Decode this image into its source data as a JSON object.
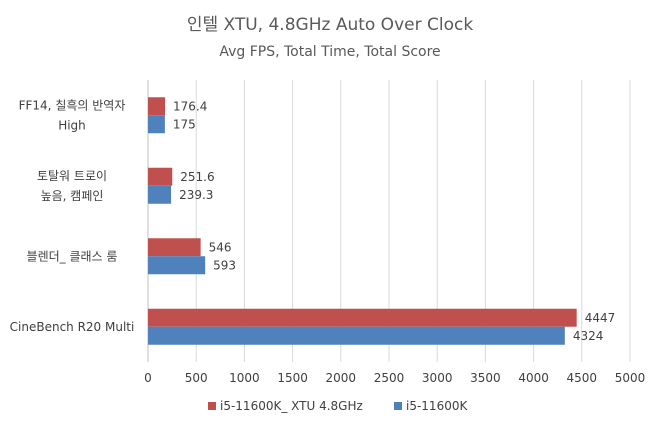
{
  "chart_data": {
    "type": "bar",
    "orientation": "horizontal",
    "title": "인텔 XTU, 4.8GHz Auto Over Clock",
    "subtitle": "Avg FPS, Total Time, Total Score",
    "categories": [
      [
        "FF14, 칠흑의 반역자",
        "High"
      ],
      [
        "토탈워 트로이",
        "높음, 캠페인"
      ],
      [
        "블렌더_ 클래스 룸"
      ],
      [
        "CineBench R20 Multi"
      ]
    ],
    "series": [
      {
        "name": "i5-11600K_ XTU 4.8GHz",
        "color": "#c0504d",
        "values": [
          176.4,
          251.6,
          546,
          4447
        ]
      },
      {
        "name": "i5-11600K",
        "color": "#4f81bd",
        "values": [
          175,
          239.3,
          593,
          4324
        ]
      }
    ],
    "xlim": [
      0,
      5000
    ],
    "xticks": [
      0,
      500,
      1000,
      1500,
      2000,
      2500,
      3000,
      3500,
      4000,
      4500,
      5000
    ],
    "grid": "vertical",
    "legend": "bottom"
  }
}
